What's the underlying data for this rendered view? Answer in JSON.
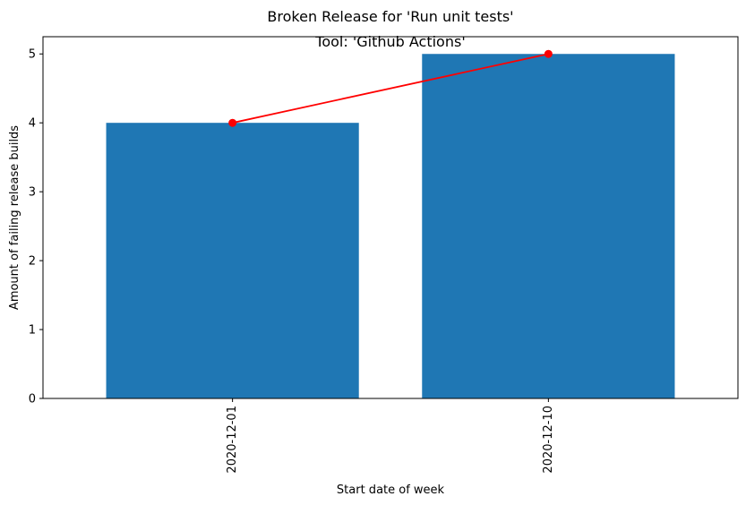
{
  "chart_data": {
    "type": "bar",
    "suptitle": "Broken Release for 'Run unit tests'",
    "title": "Tool: 'Github Actions'",
    "xlabel": "Start date of week",
    "ylabel": "Amount of failing release builds",
    "categories": [
      "2020-12-01",
      "2020-12-10"
    ],
    "series": [
      {
        "type": "bar",
        "values": [
          4,
          5
        ],
        "color": "#1f77b4"
      },
      {
        "type": "line",
        "values": [
          4,
          5
        ],
        "color": "#ff0000",
        "marker": "circle"
      }
    ],
    "ylim": [
      0,
      5.25
    ],
    "yticks": [
      0,
      1,
      2,
      3,
      4,
      5
    ],
    "grid": false
  }
}
